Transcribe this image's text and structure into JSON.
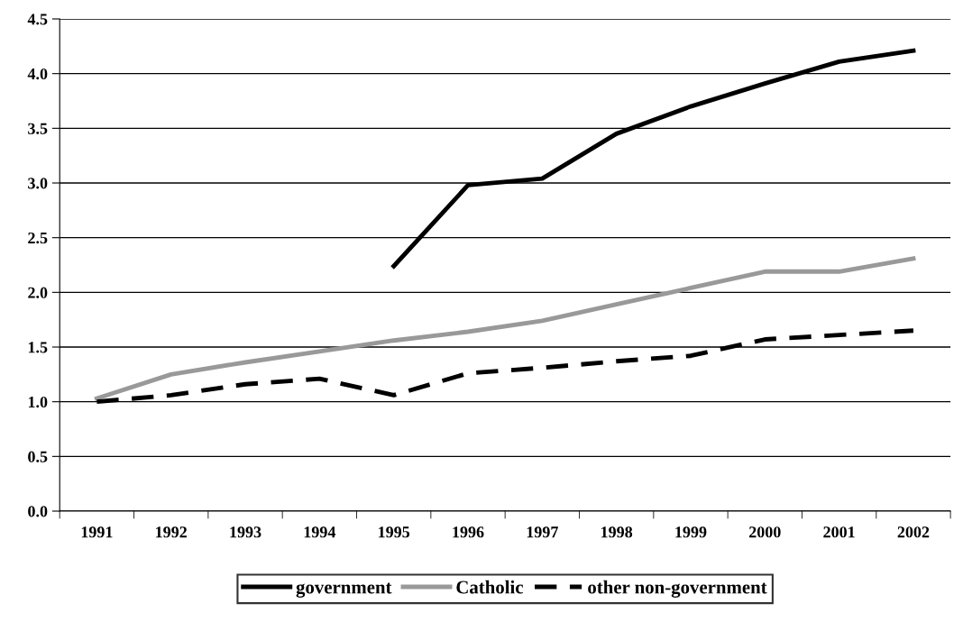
{
  "chart_data": {
    "type": "line",
    "categories": [
      "1991",
      "1992",
      "1993",
      "1994",
      "1995",
      "1996",
      "1997",
      "1998",
      "1999",
      "2000",
      "2001",
      "2002"
    ],
    "series": [
      {
        "name": "government",
        "color": "#000000",
        "line_style": "solid",
        "values": [
          null,
          null,
          null,
          null,
          2.24,
          2.98,
          3.04,
          3.45,
          3.7,
          3.91,
          4.11,
          4.21
        ]
      },
      {
        "name": "Catholic",
        "color": "#999999",
        "line_style": "solid",
        "values": [
          1.03,
          1.25,
          1.36,
          1.46,
          1.56,
          1.64,
          1.74,
          1.89,
          2.04,
          2.19,
          2.19,
          2.31
        ]
      },
      {
        "name": "other non-government",
        "color": "#000000",
        "line_style": "dashed",
        "values": [
          1.0,
          1.06,
          1.16,
          1.21,
          1.06,
          1.26,
          1.31,
          1.37,
          1.42,
          1.57,
          1.61,
          1.65
        ]
      }
    ],
    "ylim": [
      0,
      4.5
    ],
    "yticks": [
      {
        "value": 0,
        "label": "0.0"
      },
      {
        "value": 0.5,
        "label": "0.5"
      },
      {
        "value": 1,
        "label": "1.0"
      },
      {
        "value": 1.5,
        "label": "1.5"
      },
      {
        "value": 2,
        "label": "2.0"
      },
      {
        "value": 2.5,
        "label": "2.5"
      },
      {
        "value": 3,
        "label": "3.0"
      },
      {
        "value": 3.5,
        "label": "3.5"
      },
      {
        "value": 4,
        "label": "4.0"
      },
      {
        "value": 4.5,
        "label": "4.5"
      }
    ],
    "grid": "y",
    "legend": "bottom",
    "marker": "none"
  }
}
